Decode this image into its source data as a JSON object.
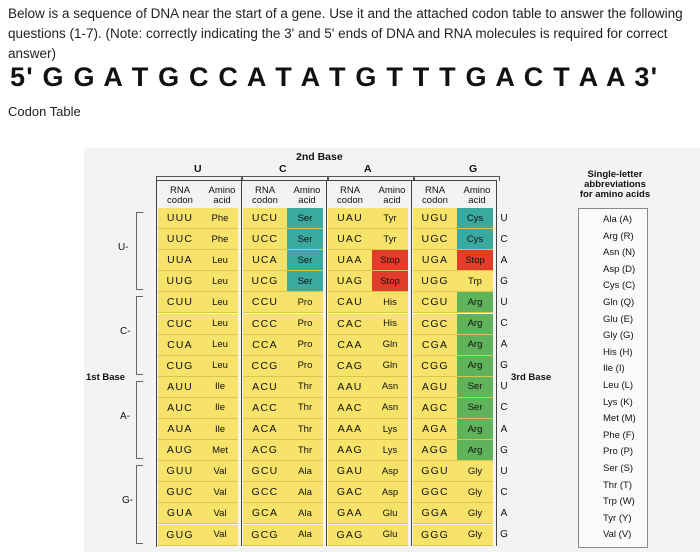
{
  "question": "Below is a sequence of DNA near the start of a gene. Use it and the attached codon table to answer the following questions (1-7). (Note: correctly indicating the 3' and 5' ends of DNA and RNA molecules is required for correct answer)",
  "dna_sequence": "5' G G A T G C C A T A T G T T T G A C T A A 3'",
  "codon_table_label": "Codon Table",
  "table": {
    "second_base_title": "2nd Base",
    "first_base_title": "1st Base",
    "third_base_title": "3rd Base",
    "second_bases": [
      "U",
      "C",
      "A",
      "G"
    ],
    "col_header_codon": "RNA\ncodon",
    "col_header_aa": "Amino\nacid",
    "groups": [
      {
        "first": "U",
        "rows": [
          [
            [
              "UUU",
              "Phe"
            ],
            [
              "UCU",
              "Ser"
            ],
            [
              "UAU",
              "Tyr"
            ],
            [
              "UGU",
              "Cys"
            ],
            "U"
          ],
          [
            [
              "UUC",
              "Phe"
            ],
            [
              "UCC",
              "Ser"
            ],
            [
              "UAC",
              "Tyr"
            ],
            [
              "UGC",
              "Cys"
            ],
            "C"
          ],
          [
            [
              "UUA",
              "Leu"
            ],
            [
              "UCA",
              "Ser"
            ],
            [
              "UAA",
              "Stop"
            ],
            [
              "UGA",
              "Stop"
            ],
            "A"
          ],
          [
            [
              "UUG",
              "Leu"
            ],
            [
              "UCG",
              "Ser"
            ],
            [
              "UAG",
              "Stop"
            ],
            [
              "UGG",
              "Trp"
            ],
            "G"
          ]
        ]
      },
      {
        "first": "C",
        "rows": [
          [
            [
              "CUU",
              "Leu"
            ],
            [
              "CCU",
              "Pro"
            ],
            [
              "CAU",
              "His"
            ],
            [
              "CGU",
              "Arg"
            ],
            "U"
          ],
          [
            [
              "CUC",
              "Leu"
            ],
            [
              "CCC",
              "Pro"
            ],
            [
              "CAC",
              "His"
            ],
            [
              "CGC",
              "Arg"
            ],
            "C"
          ],
          [
            [
              "CUA",
              "Leu"
            ],
            [
              "CCA",
              "Pro"
            ],
            [
              "CAA",
              "Gln"
            ],
            [
              "CGA",
              "Arg"
            ],
            "A"
          ],
          [
            [
              "CUG",
              "Leu"
            ],
            [
              "CCG",
              "Pro"
            ],
            [
              "CAG",
              "Gln"
            ],
            [
              "CGG",
              "Arg"
            ],
            "G"
          ]
        ]
      },
      {
        "first": "A",
        "rows": [
          [
            [
              "AUU",
              "Ile"
            ],
            [
              "ACU",
              "Thr"
            ],
            [
              "AAU",
              "Asn"
            ],
            [
              "AGU",
              "Ser"
            ],
            "U"
          ],
          [
            [
              "AUC",
              "Ile"
            ],
            [
              "ACC",
              "Thr"
            ],
            [
              "AAC",
              "Asn"
            ],
            [
              "AGC",
              "Ser"
            ],
            "C"
          ],
          [
            [
              "AUA",
              "Ile"
            ],
            [
              "ACA",
              "Thr"
            ],
            [
              "AAA",
              "Lys"
            ],
            [
              "AGA",
              "Arg"
            ],
            "A"
          ],
          [
            [
              "AUG",
              "Met"
            ],
            [
              "ACG",
              "Thr"
            ],
            [
              "AAG",
              "Lys"
            ],
            [
              "AGG",
              "Arg"
            ],
            "G"
          ]
        ]
      },
      {
        "first": "G",
        "rows": [
          [
            [
              "GUU",
              "Val"
            ],
            [
              "GCU",
              "Ala"
            ],
            [
              "GAU",
              "Asp"
            ],
            [
              "GGU",
              "Gly"
            ],
            "U"
          ],
          [
            [
              "GUC",
              "Val"
            ],
            [
              "GCC",
              "Ala"
            ],
            [
              "GAC",
              "Asp"
            ],
            [
              "GGC",
              "Gly"
            ],
            "C"
          ],
          [
            [
              "GUA",
              "Val"
            ],
            [
              "GCA",
              "Ala"
            ],
            [
              "GAA",
              "Glu"
            ],
            [
              "GGA",
              "Gly"
            ],
            "A"
          ],
          [
            [
              "GUG",
              "Val"
            ],
            [
              "GCG",
              "Ala"
            ],
            [
              "GAG",
              "Glu"
            ],
            [
              "GGG",
              "Gly"
            ],
            "G"
          ]
        ]
      }
    ]
  },
  "legend": {
    "title": "Single-letter\nabbreviations\nfor amino acids",
    "items": [
      "Ala (A)",
      "Arg (R)",
      "Asn (N)",
      "Asp (D)",
      "Cys (C)",
      "Gln (Q)",
      "Glu (E)",
      "Gly (G)",
      "His (H)",
      "Ile (I)",
      "Leu (L)",
      "Lys (K)",
      "Met (M)",
      "Phe (F)",
      "Pro (P)",
      "Ser (S)",
      "Thr (T)",
      "Trp (W)",
      "Tyr (Y)",
      "Val (V)"
    ]
  },
  "colors": {
    "phe_leu_ile_met_val": "#fdfdfd",
    "ser_pro_thr_ala": "#f7e26a",
    "ser_uc": "#3aa9a0",
    "polar_a": "#f7e26a",
    "stop": "#e23c2a",
    "g_column_hydrophilic": "#f7e26a",
    "arg_ser_g": "#4caa55",
    "met": "#3aa9a0"
  }
}
